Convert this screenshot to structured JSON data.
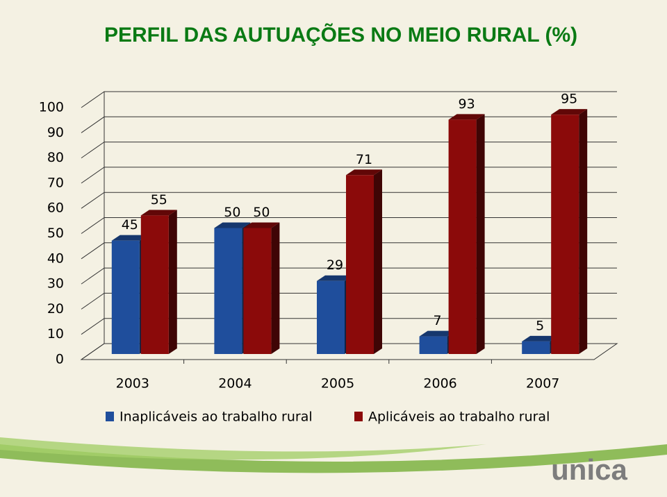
{
  "chart_data": {
    "type": "bar",
    "title": "PERFIL DAS AUTUAÇÕES NO MEIO RURAL (%)",
    "categories": [
      "2003",
      "2004",
      "2005",
      "2006",
      "2007"
    ],
    "series": [
      {
        "name": "Inaplicáveis ao trabalho rural",
        "color": "#1f4e9c",
        "values": [
          45,
          50,
          29,
          7,
          5
        ]
      },
      {
        "name": "Aplicáveis ao trabalho rural",
        "color": "#8b0a0a",
        "values": [
          55,
          50,
          71,
          93,
          95
        ]
      }
    ],
    "ylim": [
      0,
      100
    ],
    "yticks": [
      0,
      10,
      20,
      30,
      40,
      50,
      60,
      70,
      80,
      90,
      100
    ],
    "grid": true
  },
  "logo": "unica"
}
